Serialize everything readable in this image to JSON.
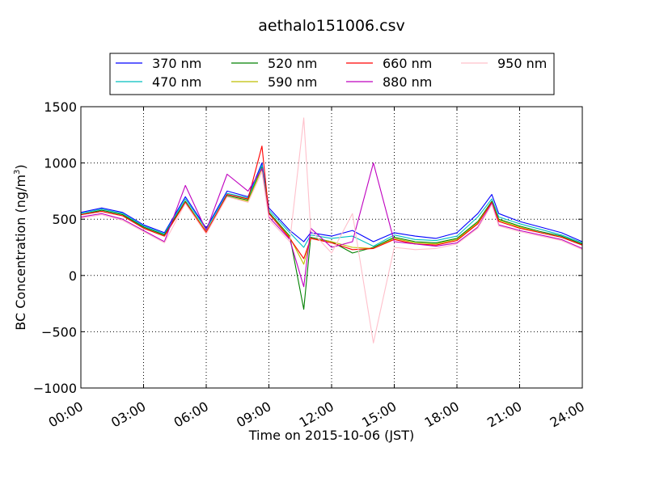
{
  "chart_data": {
    "type": "line",
    "title": "aethalo151006.csv",
    "xlabel": "Time on 2015-10-06 (JST)",
    "ylabel": "BC Concentration (ng/m³)",
    "ylabel_main": "BC Concentration (ng/m",
    "ylabel_sup": "3",
    "ylabel_close": ")",
    "xlim": [
      "00:00",
      "24:00"
    ],
    "ylim": [
      -1000,
      1500
    ],
    "x_ticks": [
      "00:00",
      "03:00",
      "06:00",
      "09:00",
      "12:00",
      "15:00",
      "18:00",
      "21:00",
      "24:00"
    ],
    "y_ticks": [
      1500,
      1000,
      500,
      0,
      -500,
      -1000
    ],
    "y_tick_labels": [
      "1500",
      "1000",
      "500",
      "0",
      "−500",
      "−1000"
    ],
    "grid": true,
    "legend_position": "top",
    "x": [
      "00:00",
      "01:00",
      "02:00",
      "03:00",
      "04:00",
      "05:00",
      "06:00",
      "07:00",
      "08:00",
      "08:40",
      "09:00",
      "10:00",
      "10:40",
      "11:00",
      "12:00",
      "13:00",
      "14:00",
      "15:00",
      "16:00",
      "17:00",
      "18:00",
      "19:00",
      "19:40",
      "20:00",
      "21:00",
      "22:00",
      "23:00",
      "24:00"
    ],
    "series": [
      {
        "name": "370 nm",
        "color": "#0000ff",
        "values": [
          560,
          600,
          560,
          450,
          380,
          700,
          420,
          750,
          700,
          1000,
          600,
          400,
          300,
          380,
          350,
          400,
          300,
          380,
          350,
          330,
          380,
          550,
          720,
          550,
          480,
          430,
          380,
          300
        ]
      },
      {
        "name": "470 nm",
        "color": "#00bfbf",
        "values": [
          550,
          590,
          550,
          440,
          370,
          680,
          410,
          730,
          690,
          980,
          580,
          380,
          250,
          360,
          330,
          350,
          260,
          360,
          320,
          310,
          350,
          520,
          680,
          520,
          460,
          410,
          360,
          290
        ]
      },
      {
        "name": "520 nm",
        "color": "#008000",
        "values": [
          540,
          580,
          540,
          430,
          360,
          660,
          390,
          710,
          670,
          960,
          560,
          350,
          -300,
          340,
          300,
          200,
          250,
          340,
          300,
          290,
          330,
          480,
          660,
          500,
          440,
          390,
          350,
          280
        ]
      },
      {
        "name": "590 nm",
        "color": "#bfbf00",
        "values": [
          540,
          570,
          530,
          420,
          350,
          650,
          390,
          700,
          660,
          950,
          550,
          340,
          100,
          330,
          300,
          250,
          240,
          330,
          290,
          280,
          320,
          470,
          650,
          490,
          430,
          380,
          340,
          270
        ]
      },
      {
        "name": "660 nm",
        "color": "#ff0000",
        "values": [
          540,
          570,
          530,
          420,
          350,
          650,
          380,
          720,
          680,
          1150,
          550,
          330,
          150,
          330,
          290,
          230,
          240,
          320,
          280,
          270,
          310,
          460,
          650,
          480,
          420,
          380,
          340,
          270
        ]
      },
      {
        "name": "880 nm",
        "color": "#bf00bf",
        "values": [
          520,
          550,
          500,
          400,
          300,
          800,
          400,
          900,
          750,
          950,
          520,
          320,
          -100,
          420,
          250,
          300,
          1000,
          300,
          280,
          260,
          290,
          430,
          640,
          450,
          400,
          360,
          320,
          240
        ]
      },
      {
        "name": "950 nm",
        "color": "#ffc0cb",
        "values": [
          510,
          540,
          490,
          390,
          290,
          640,
          370,
          700,
          650,
          920,
          500,
          300,
          1400,
          400,
          200,
          550,
          -600,
          250,
          230,
          240,
          280,
          420,
          630,
          440,
          390,
          350,
          310,
          230
        ]
      }
    ]
  }
}
